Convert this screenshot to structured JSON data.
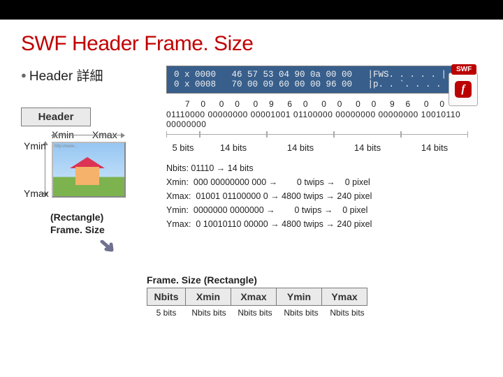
{
  "title": "SWF Header Frame. Size",
  "subtitle": "Header 詳細",
  "swf_badge": "SWF",
  "header_label": "Header",
  "xmin": "Xmin",
  "xmax": "Xmax",
  "ymin": "Ymin",
  "ymax": "Ymax",
  "rect_label1": "(Rectangle)",
  "rect_label2": "Frame. Size",
  "hex": "0 x 0000   46 57 53 04 90 0a 00 00   |FWS. . . . . |\n0 x 0008   70 00 09 60 00 00 96 00   |p. . `. . . . |",
  "hex_row": "       7    0     0    0     0    9     6    0     0    0     0    0     9    6     0    0",
  "bits_row": "01110000 00000000 00001001 01100000 00000000 00000000 10010110 00000000",
  "segments": [
    {
      "label": "5 bits",
      "width": 48
    },
    {
      "label": "14 bits",
      "width": 96
    },
    {
      "label": "14 bits",
      "width": 96
    },
    {
      "label": "14 bits",
      "width": 96
    },
    {
      "label": "14 bits",
      "width": 96
    }
  ],
  "conv": "Nbits: 01110 → 14 bits\nXmin:  000 00000000 000 →        0 twips →    0 pixel\nXmax:  01001 01100000 0 → 4800 twips → 240 pixel\nYmin:  0000000 0000000 →        0 twips →    0 pixel\nYmax:  0 10010110 00000 → 4800 twips → 240 pixel",
  "struct": {
    "title": "Frame. Size (Rectangle)",
    "cells": [
      {
        "label": "Nbits",
        "w": 56,
        "sub": "5 bits"
      },
      {
        "label": "Xmin",
        "w": 66,
        "sub": "Nbits bits"
      },
      {
        "label": "Xmax",
        "w": 66,
        "sub": "Nbits bits"
      },
      {
        "label": "Ymin",
        "w": 66,
        "sub": "Nbits bits"
      },
      {
        "label": "Ymax",
        "w": 66,
        "sub": "Nbits bits"
      }
    ]
  }
}
